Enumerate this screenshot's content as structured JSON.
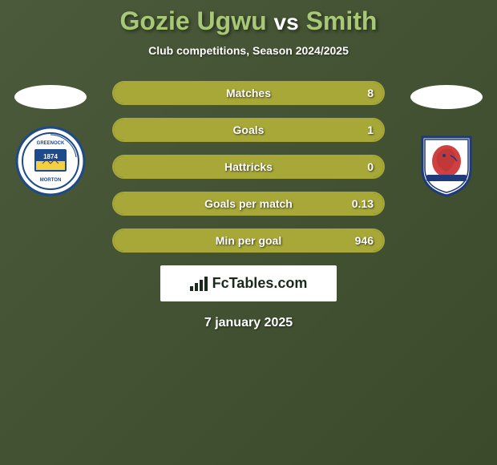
{
  "header": {
    "player1": "Gozie Ugwu",
    "vs": "vs",
    "player2": "Smith",
    "subtitle": "Club competitions, Season 2024/2025"
  },
  "stats": [
    {
      "label": "Matches",
      "value_right": "8",
      "fill_right_pct": 100
    },
    {
      "label": "Goals",
      "value_right": "1",
      "fill_right_pct": 100
    },
    {
      "label": "Hattricks",
      "value_right": "0",
      "fill_right_pct": 100
    },
    {
      "label": "Goals per match",
      "value_right": "0.13",
      "fill_right_pct": 100
    },
    {
      "label": "Min per goal",
      "value_right": "946",
      "fill_right_pct": 100
    }
  ],
  "badges": {
    "left": {
      "name": "Greenock Morton",
      "year": "1874",
      "bg_color": "#ffffff",
      "ring_color": "#1e4a8a",
      "inner_colors": [
        "#1e4a8a",
        "#ffffff",
        "#f2d040"
      ]
    },
    "right": {
      "name": "Raith Rovers",
      "bg_color": "#ffffff",
      "shield_color": "#1e3a7a",
      "lion_color": "#d04040"
    }
  },
  "footer": {
    "logo": "FcTables.com",
    "date": "7 january 2025"
  },
  "colors": {
    "bar_fill": "#a8a838",
    "bar_border": "#a8a838",
    "title_accent": "#a8c878",
    "background_start": "#4a5a3a",
    "background_end": "#3a4a2a"
  }
}
